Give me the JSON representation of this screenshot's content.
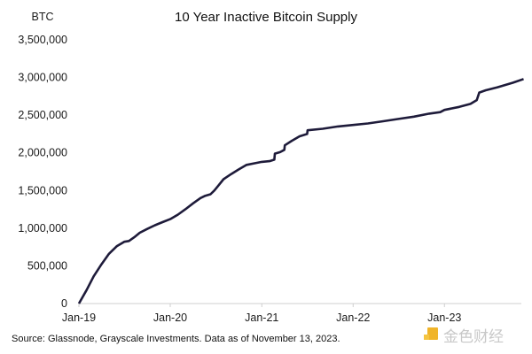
{
  "chart_data": {
    "type": "line",
    "title": "10 Year Inactive Bitcoin Supply",
    "ylabel": "BTC",
    "xlabel": "",
    "ylim": [
      0,
      3500000
    ],
    "xlim": [
      "2019-01-01",
      "2023-11-13"
    ],
    "yticks": [
      "0",
      "500,000",
      "1,000,000",
      "1,500,000",
      "2,000,000",
      "2,500,000",
      "3,000,000",
      "3,500,000"
    ],
    "ytick_values": [
      0,
      500000,
      1000000,
      1500000,
      2000000,
      2500000,
      3000000,
      3500000
    ],
    "xticks": [
      "Jan-19",
      "Jan-20",
      "Jan-21",
      "Jan-22",
      "Jan-23"
    ],
    "xtick_values": [
      "2019-01-01",
      "2020-01-01",
      "2021-01-01",
      "2022-01-01",
      "2023-01-01"
    ],
    "grid": false,
    "line_color": "#1e1b3a",
    "series": [
      {
        "x": [
          "2019-01-01",
          "2019-02-01",
          "2019-03-01",
          "2019-04-01",
          "2019-05-01",
          "2019-06-01",
          "2019-07-01",
          "2019-07-20",
          "2019-08-10",
          "2019-09-01",
          "2019-10-01",
          "2019-11-01",
          "2019-12-01",
          "2020-01-01",
          "2020-02-01",
          "2020-03-01",
          "2020-04-01",
          "2020-05-01",
          "2020-05-20",
          "2020-06-10",
          "2020-06-25",
          "2020-07-10",
          "2020-08-01",
          "2020-09-01",
          "2020-10-01",
          "2020-11-01",
          "2020-12-01",
          "2021-01-01",
          "2021-02-01",
          "2021-02-20",
          "2021-02-22",
          "2021-03-15",
          "2021-04-01",
          "2021-04-03",
          "2021-05-01",
          "2021-06-01",
          "2021-07-01",
          "2021-07-03",
          "2021-09-01",
          "2021-11-01",
          "2022-01-01",
          "2022-03-01",
          "2022-05-01",
          "2022-07-01",
          "2022-09-01",
          "2022-11-01",
          "2022-12-15",
          "2023-01-01",
          "2023-03-01",
          "2023-04-15",
          "2023-05-10",
          "2023-05-20",
          "2023-06-15",
          "2023-08-01",
          "2023-10-01",
          "2023-11-13"
        ],
        "y": [
          0,
          180000,
          360000,
          520000,
          660000,
          760000,
          820000,
          830000,
          880000,
          940000,
          990000,
          1040000,
          1080000,
          1120000,
          1180000,
          1250000,
          1330000,
          1400000,
          1430000,
          1450000,
          1500000,
          1560000,
          1650000,
          1720000,
          1780000,
          1840000,
          1860000,
          1880000,
          1890000,
          1910000,
          1990000,
          2010000,
          2040000,
          2100000,
          2160000,
          2220000,
          2250000,
          2300000,
          2320000,
          2350000,
          2370000,
          2390000,
          2420000,
          2450000,
          2480000,
          2520000,
          2540000,
          2570000,
          2610000,
          2650000,
          2700000,
          2800000,
          2830000,
          2870000,
          2930000,
          2980000
        ]
      }
    ]
  },
  "source": "Source: Glassnode, Grayscale Investments. Data as of November 13, 2023.",
  "watermark": "金色财经"
}
